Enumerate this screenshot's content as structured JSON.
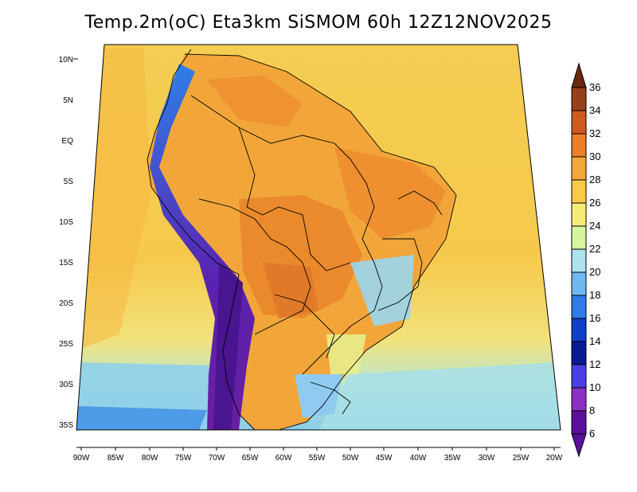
{
  "title": "Temp.2m(oC) Eta3km SiSMOM 60h 12Z12NOV2025",
  "lat_ticks": [
    "10N",
    "5N",
    "EQ",
    "5S",
    "10S",
    "15S",
    "20S",
    "25S",
    "30S",
    "35S"
  ],
  "lon_ticks": [
    "90W",
    "85W",
    "80W",
    "75W",
    "70W",
    "65W",
    "60W",
    "55W",
    "50W",
    "45W",
    "40W",
    "35W",
    "30W",
    "25W",
    "20W"
  ],
  "colorbar": {
    "labels": [
      "36",
      "34",
      "32",
      "30",
      "28",
      "26",
      "24",
      "22",
      "20",
      "18",
      "16",
      "14",
      "12",
      "10",
      "8",
      "6"
    ],
    "colors": [
      "#6b2a0e",
      "#98401b",
      "#cf5a1e",
      "#ec7f27",
      "#f5a63a",
      "#f7cb46",
      "#f5ec78",
      "#d7f59c",
      "#ace2f0",
      "#6fb9f0",
      "#2f7be8",
      "#0d3fc8",
      "#0a1a96",
      "#4b3fe6",
      "#8c30c4",
      "#5b0f9a"
    ]
  },
  "map_colors": {
    "ocean_warm": "#f6cc4f",
    "ocean_cool": "#b5e6e3",
    "land_hot": "#ee8f2c",
    "land_warm": "#f5a83a",
    "andes_cold": "#6a2bb3",
    "south_cool": "#69b6ef"
  }
}
